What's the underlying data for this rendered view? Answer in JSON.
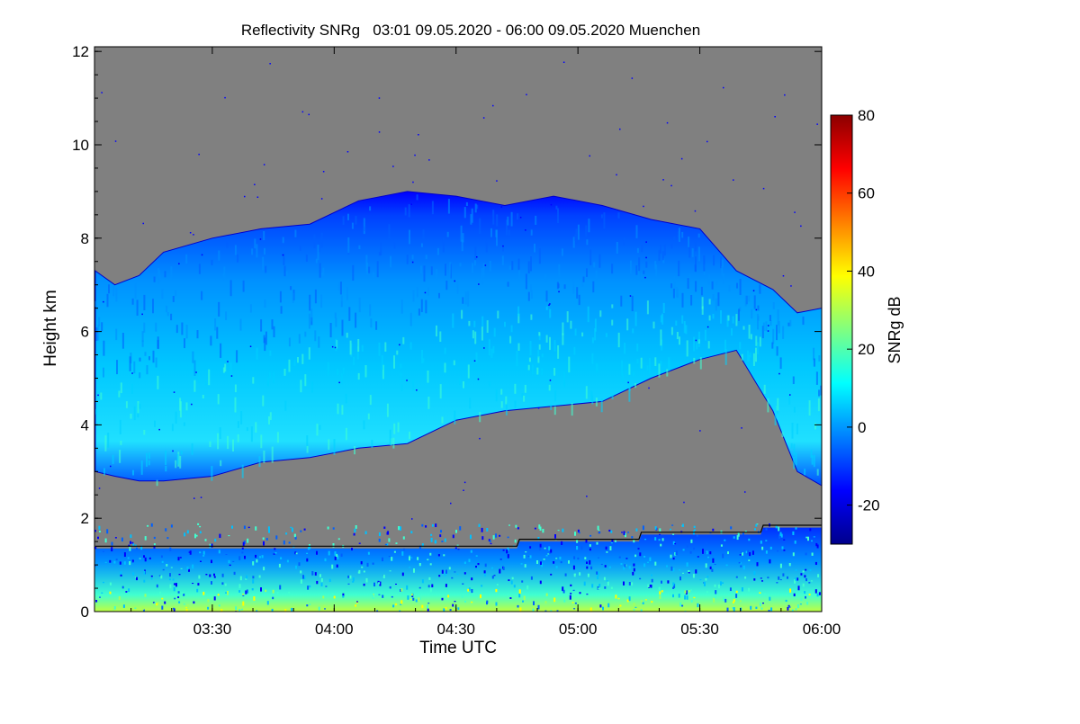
{
  "chart_data": {
    "type": "heatmap",
    "title": "Reflectivity SNRg   03:01 09.05.2020 - 06:00 09.05.2020 Muenchen",
    "xlabel": "Time UTC",
    "ylabel": "Height km",
    "x_range_hours": [
      3.0167,
      6.0
    ],
    "x_ticks": [
      {
        "value": 3.5,
        "label": "03:30"
      },
      {
        "value": 4.0,
        "label": "04:00"
      },
      {
        "value": 4.5,
        "label": "04:30"
      },
      {
        "value": 5.0,
        "label": "05:00"
      },
      {
        "value": 5.5,
        "label": "05:30"
      },
      {
        "value": 6.0,
        "label": "06:00"
      }
    ],
    "ylim": [
      0,
      12.1
    ],
    "y_ticks": [
      {
        "value": 0,
        "label": "0"
      },
      {
        "value": 2,
        "label": "2"
      },
      {
        "value": 4,
        "label": "4"
      },
      {
        "value": 6,
        "label": "6"
      },
      {
        "value": 8,
        "label": "8"
      },
      {
        "value": 10,
        "label": "10"
      },
      {
        "value": 12,
        "label": "12"
      }
    ],
    "background_color": "#808080",
    "colorbar": {
      "label": "SNRg dB",
      "range": [
        -30,
        80
      ],
      "ticks": [
        {
          "value": -20,
          "label": "-20"
        },
        {
          "value": 0,
          "label": "0"
        },
        {
          "value": 20,
          "label": "20"
        },
        {
          "value": 40,
          "label": "40"
        },
        {
          "value": 60,
          "label": "60"
        },
        {
          "value": 80,
          "label": "80"
        }
      ],
      "colors": [
        "#00008b",
        "#0000ff",
        "#0080ff",
        "#00ffff",
        "#80ff80",
        "#ffff00",
        "#ff8000",
        "#ff0000",
        "#8b0000"
      ]
    },
    "cloud_layer": {
      "time": [
        3.02,
        3.1,
        3.2,
        3.3,
        3.5,
        3.7,
        3.9,
        4.1,
        4.3,
        4.5,
        4.7,
        4.9,
        5.1,
        5.3,
        5.5,
        5.65,
        5.8,
        5.9,
        6.0
      ],
      "base_km": [
        3.0,
        2.9,
        2.8,
        2.8,
        2.9,
        3.2,
        3.3,
        3.5,
        3.6,
        4.1,
        4.3,
        4.4,
        4.5,
        5.0,
        5.4,
        5.6,
        4.3,
        3.0,
        2.7
      ],
      "top_km": [
        7.3,
        7.0,
        7.2,
        7.7,
        8.0,
        8.2,
        8.3,
        8.8,
        9.0,
        8.9,
        8.7,
        8.9,
        8.7,
        8.4,
        8.2,
        7.3,
        6.9,
        6.4,
        6.5
      ]
    },
    "boundary_layer_km": {
      "time": [
        3.02,
        4.75,
        4.76,
        5.25,
        5.26,
        5.75,
        5.76,
        6.0
      ],
      "height": [
        1.4,
        1.4,
        1.55,
        1.55,
        1.7,
        1.7,
        1.85,
        1.85
      ]
    }
  }
}
